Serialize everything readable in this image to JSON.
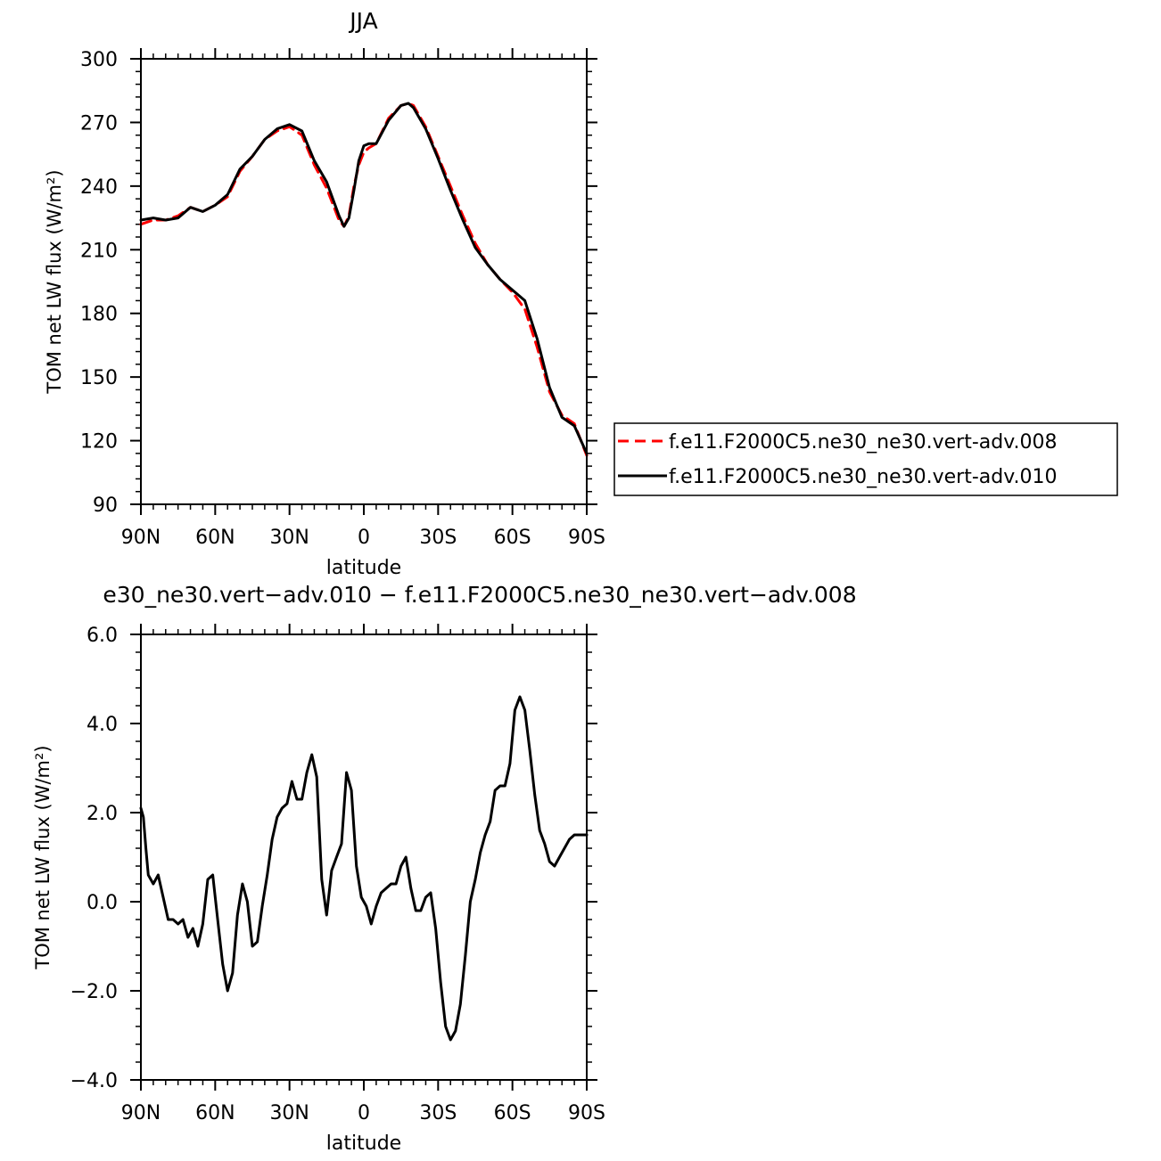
{
  "chart_data": [
    {
      "type": "line",
      "title": "JJA",
      "xlabel": "latitude",
      "ylabel": "TOM net LW flux (W/m²)",
      "xlim": [
        90,
        -90
      ],
      "ylim": [
        90,
        300
      ],
      "xticks": [
        {
          "value": 90,
          "label": "90N"
        },
        {
          "value": 60,
          "label": "60N"
        },
        {
          "value": 30,
          "label": "30N"
        },
        {
          "value": 0,
          "label": "0"
        },
        {
          "value": -30,
          "label": "30S"
        },
        {
          "value": -60,
          "label": "60S"
        },
        {
          "value": -90,
          "label": "90S"
        }
      ],
      "yticks": [
        {
          "value": 300,
          "label": "300"
        },
        {
          "value": 270,
          "label": "270"
        },
        {
          "value": 240,
          "label": "240"
        },
        {
          "value": 210,
          "label": "210"
        },
        {
          "value": 180,
          "label": "180"
        },
        {
          "value": 150,
          "label": "150"
        },
        {
          "value": 120,
          "label": "120"
        },
        {
          "value": 90,
          "label": "90"
        }
      ],
      "legend_position": "right",
      "series": [
        {
          "name": "f.e11.F2000C5.ne30_ne30.vert-adv.008",
          "color": "#ff0000",
          "dash": "dashed",
          "x": [
            90,
            85,
            80,
            75,
            70,
            65,
            60,
            55,
            50,
            45,
            40,
            35,
            30,
            25,
            20,
            15,
            10,
            8,
            6,
            4,
            2,
            0,
            -2,
            -5,
            -10,
            -15,
            -18,
            -20,
            -25,
            -30,
            -35,
            -40,
            -45,
            -50,
            -55,
            -60,
            -65,
            -70,
            -75,
            -80,
            -85,
            -90
          ],
          "y": [
            222,
            224,
            224,
            226,
            230,
            228,
            231,
            235,
            247,
            254,
            262,
            266,
            268,
            264,
            250,
            239,
            224,
            221,
            226,
            240,
            250,
            256,
            258,
            260,
            272,
            278,
            279,
            278,
            268,
            254,
            240,
            226,
            213,
            203,
            196,
            190,
            182,
            164,
            143,
            132,
            128,
            113
          ]
        },
        {
          "name": "f.e11.F2000C5.ne30_ne30.vert-adv.010",
          "color": "#000000",
          "dash": "solid",
          "x": [
            90,
            85,
            80,
            75,
            70,
            65,
            60,
            55,
            50,
            45,
            40,
            35,
            30,
            25,
            20,
            15,
            10,
            8,
            6,
            4,
            2,
            0,
            -2,
            -5,
            -10,
            -15,
            -18,
            -20,
            -25,
            -30,
            -35,
            -40,
            -45,
            -50,
            -55,
            -60,
            -65,
            -70,
            -75,
            -80,
            -85,
            -90
          ],
          "y": [
            224,
            225,
            224,
            225,
            230,
            228,
            231,
            236,
            248,
            254,
            262,
            267,
            269,
            266,
            252,
            242,
            226,
            221,
            225,
            238,
            252,
            259,
            260,
            260,
            271,
            278,
            279,
            277,
            267,
            253,
            238,
            224,
            211,
            203,
            196,
            191,
            186,
            168,
            145,
            131,
            127,
            114
          ]
        }
      ]
    },
    {
      "type": "line",
      "title": "e30_ne30.vert−adv.010 − f.e11.F2000C5.ne30_ne30.vert−adv.008",
      "xlabel": "latitude",
      "ylabel": "TOM net LW flux (W/m²)",
      "xlim": [
        90,
        -90
      ],
      "ylim": [
        -4,
        6
      ],
      "xticks": [
        {
          "value": 90,
          "label": "90N"
        },
        {
          "value": 60,
          "label": "60N"
        },
        {
          "value": 30,
          "label": "30N"
        },
        {
          "value": 0,
          "label": "0"
        },
        {
          "value": -30,
          "label": "30S"
        },
        {
          "value": -60,
          "label": "60S"
        },
        {
          "value": -90,
          "label": "90S"
        }
      ],
      "yticks": [
        {
          "value": 6,
          "label": "6.0"
        },
        {
          "value": 4,
          "label": "4.0"
        },
        {
          "value": 2,
          "label": "2.0"
        },
        {
          "value": 0,
          "label": "0.0"
        },
        {
          "value": -2,
          "label": "−2.0"
        },
        {
          "value": -4,
          "label": "−4.0"
        }
      ],
      "series": [
        {
          "color": "#000000",
          "dash": "solid",
          "x": [
            90,
            89,
            88,
            87,
            85,
            83,
            81,
            79,
            77,
            75,
            73,
            71,
            69,
            67,
            65,
            63,
            61,
            59,
            57,
            55,
            53,
            51,
            49,
            47,
            45,
            43,
            41,
            39,
            37,
            35,
            33,
            31,
            29,
            27,
            25,
            23,
            21,
            19,
            17,
            15,
            13,
            11,
            9,
            7,
            5,
            3,
            1,
            -1,
            -3,
            -5,
            -7,
            -9,
            -11,
            -13,
            -15,
            -17,
            -19,
            -21,
            -23,
            -25,
            -27,
            -29,
            -31,
            -33,
            -35,
            -37,
            -39,
            -41,
            -43,
            -45,
            -47,
            -49,
            -51,
            -53,
            -55,
            -57,
            -59,
            -61,
            -63,
            -65,
            -67,
            -69,
            -71,
            -73,
            -75,
            -77,
            -79,
            -81,
            -83,
            -85,
            -87,
            -90
          ],
          "y": [
            2.1,
            1.9,
            1.2,
            0.6,
            0.4,
            0.6,
            0.1,
            -0.4,
            -0.4,
            -0.5,
            -0.4,
            -0.8,
            -0.6,
            -1.0,
            -0.5,
            0.5,
            0.6,
            -0.4,
            -1.4,
            -2.0,
            -1.6,
            -0.3,
            0.4,
            0.0,
            -1.0,
            -0.9,
            -0.1,
            0.6,
            1.4,
            1.9,
            2.1,
            2.2,
            2.7,
            2.3,
            2.3,
            2.9,
            3.3,
            2.8,
            0.5,
            -0.3,
            0.7,
            1.0,
            1.3,
            2.9,
            2.5,
            0.8,
            0.1,
            -0.1,
            -0.5,
            -0.1,
            0.2,
            0.3,
            0.4,
            0.4,
            0.8,
            1.0,
            0.3,
            -0.2,
            -0.2,
            0.1,
            0.2,
            -0.6,
            -1.8,
            -2.8,
            -3.1,
            -2.9,
            -2.3,
            -1.2,
            0.0,
            0.5,
            1.1,
            1.5,
            1.8,
            2.5,
            2.6,
            2.6,
            3.1,
            4.3,
            4.6,
            4.3,
            3.4,
            2.4,
            1.6,
            1.3,
            0.9,
            0.8,
            1.0,
            1.2,
            1.4,
            1.5,
            1.5,
            1.5
          ]
        }
      ]
    }
  ]
}
